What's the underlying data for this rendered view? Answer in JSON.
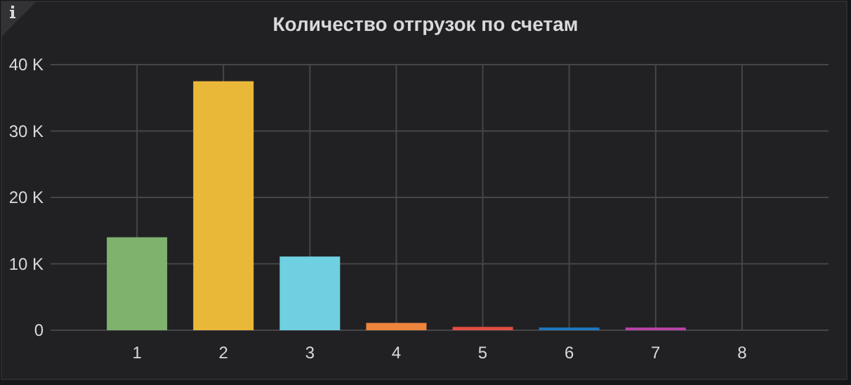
{
  "chart_data": {
    "type": "bar",
    "title": "Количество отгрузок по счетам",
    "categories": [
      "1",
      "2",
      "3",
      "4",
      "5",
      "6",
      "7",
      "8"
    ],
    "values": [
      14000,
      37500,
      11100,
      1100,
      500,
      400,
      400,
      0
    ],
    "colors": [
      "#7eb26d",
      "#eab839",
      "#6ed0e0",
      "#ef843c",
      "#e24d42",
      "#1f78c1",
      "#ba43a9",
      "#705da0"
    ],
    "ylim": [
      0,
      40000
    ],
    "yticks": [
      {
        "value": 0,
        "label": "0"
      },
      {
        "value": 10000,
        "label": "10 K"
      },
      {
        "value": 20000,
        "label": "20 K"
      },
      {
        "value": 30000,
        "label": "30 K"
      },
      {
        "value": 40000,
        "label": "40 K"
      }
    ],
    "grid": true
  }
}
